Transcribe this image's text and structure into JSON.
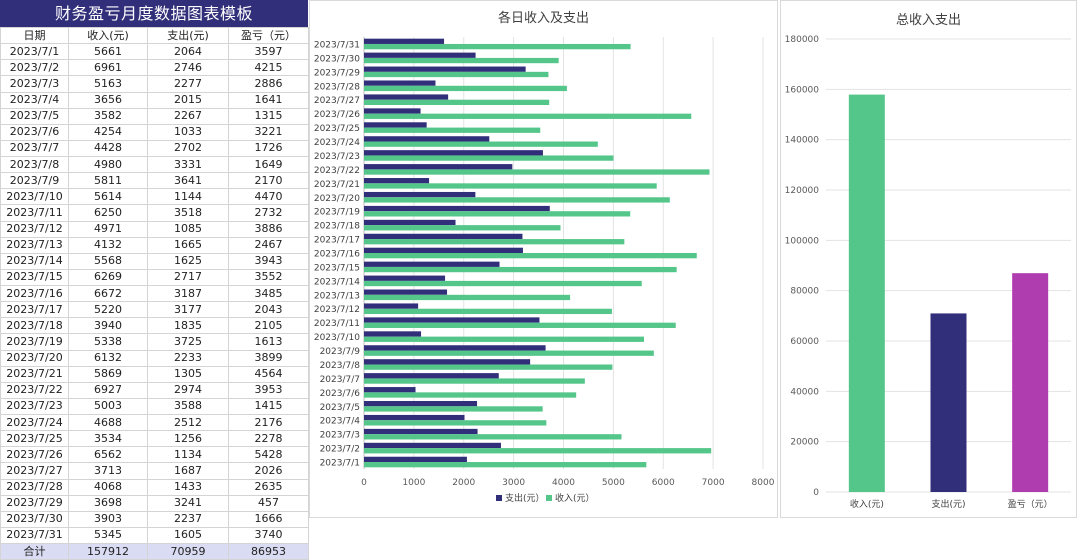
{
  "table": {
    "title": "财务盈亏月度数据图表模板",
    "headers": [
      "日期",
      "收入(元)",
      "支出(元)",
      "盈亏（元）"
    ],
    "rows": [
      [
        "2023/7/1",
        "5661",
        "2064",
        "3597"
      ],
      [
        "2023/7/2",
        "6961",
        "2746",
        "4215"
      ],
      [
        "2023/7/3",
        "5163",
        "2277",
        "2886"
      ],
      [
        "2023/7/4",
        "3656",
        "2015",
        "1641"
      ],
      [
        "2023/7/5",
        "3582",
        "2267",
        "1315"
      ],
      [
        "2023/7/6",
        "4254",
        "1033",
        "3221"
      ],
      [
        "2023/7/7",
        "4428",
        "2702",
        "1726"
      ],
      [
        "2023/7/8",
        "4980",
        "3331",
        "1649"
      ],
      [
        "2023/7/9",
        "5811",
        "3641",
        "2170"
      ],
      [
        "2023/7/10",
        "5614",
        "1144",
        "4470"
      ],
      [
        "2023/7/11",
        "6250",
        "3518",
        "2732"
      ],
      [
        "2023/7/12",
        "4971",
        "1085",
        "3886"
      ],
      [
        "2023/7/13",
        "4132",
        "1665",
        "2467"
      ],
      [
        "2023/7/14",
        "5568",
        "1625",
        "3943"
      ],
      [
        "2023/7/15",
        "6269",
        "2717",
        "3552"
      ],
      [
        "2023/7/16",
        "6672",
        "3187",
        "3485"
      ],
      [
        "2023/7/17",
        "5220",
        "3177",
        "2043"
      ],
      [
        "2023/7/18",
        "3940",
        "1835",
        "2105"
      ],
      [
        "2023/7/19",
        "5338",
        "3725",
        "1613"
      ],
      [
        "2023/7/20",
        "6132",
        "2233",
        "3899"
      ],
      [
        "2023/7/21",
        "5869",
        "1305",
        "4564"
      ],
      [
        "2023/7/22",
        "6927",
        "2974",
        "3953"
      ],
      [
        "2023/7/23",
        "5003",
        "3588",
        "1415"
      ],
      [
        "2023/7/24",
        "4688",
        "2512",
        "2176"
      ],
      [
        "2023/7/25",
        "3534",
        "1256",
        "2278"
      ],
      [
        "2023/7/26",
        "6562",
        "1134",
        "5428"
      ],
      [
        "2023/7/27",
        "3713",
        "1687",
        "2026"
      ],
      [
        "2023/7/28",
        "4068",
        "1433",
        "2635"
      ],
      [
        "2023/7/29",
        "3698",
        "3241",
        "457"
      ],
      [
        "2023/7/30",
        "3903",
        "2237",
        "1666"
      ],
      [
        "2023/7/31",
        "5345",
        "1605",
        "3740"
      ]
    ],
    "total": [
      "合计",
      "157912",
      "70959",
      "86953"
    ]
  },
  "colors": {
    "header_bg": "#312e7a",
    "total_bg": "#d9dcf2",
    "income": "#55c68a",
    "expense": "#312e7a",
    "profit": "#b03db0"
  },
  "chart_data": [
    {
      "type": "bar",
      "orientation": "horizontal",
      "title": "各日收入及支出",
      "categories": [
        "2023/7/1",
        "2023/7/2",
        "2023/7/3",
        "2023/7/4",
        "2023/7/5",
        "2023/7/6",
        "2023/7/7",
        "2023/7/8",
        "2023/7/9",
        "2023/7/10",
        "2023/7/11",
        "2023/7/12",
        "2023/7/13",
        "2023/7/14",
        "2023/7/15",
        "2023/7/16",
        "2023/7/17",
        "2023/7/18",
        "2023/7/19",
        "2023/7/20",
        "2023/7/21",
        "2023/7/22",
        "2023/7/23",
        "2023/7/24",
        "2023/7/25",
        "2023/7/26",
        "2023/7/27",
        "2023/7/28",
        "2023/7/29",
        "2023/7/30",
        "2023/7/31"
      ],
      "series": [
        {
          "name": "支出(元）",
          "values": [
            2064,
            2746,
            2277,
            2015,
            2267,
            1033,
            2702,
            3331,
            3641,
            1144,
            3518,
            1085,
            1665,
            1625,
            2717,
            3187,
            3177,
            1835,
            3725,
            2233,
            1305,
            2974,
            3588,
            2512,
            1256,
            1134,
            1687,
            1433,
            3241,
            2237,
            1605
          ]
        },
        {
          "name": "收入(元）",
          "values": [
            5661,
            6961,
            5163,
            3656,
            3582,
            4254,
            4428,
            4980,
            5811,
            5614,
            6250,
            4971,
            4132,
            5568,
            6269,
            6672,
            5220,
            3940,
            5338,
            6132,
            5869,
            6927,
            5003,
            4688,
            3534,
            6562,
            3713,
            4068,
            3698,
            3903,
            5345
          ]
        }
      ],
      "xlim": [
        0,
        8000
      ],
      "xticks": [
        "0",
        "1000",
        "2000",
        "3000",
        "4000",
        "5000",
        "6000",
        "7000",
        "8000"
      ],
      "grid": true,
      "legend": "bottom"
    },
    {
      "type": "bar",
      "title": "总收入支出",
      "categories": [
        "收入(元)",
        "支出(元)",
        "盈亏（元）"
      ],
      "values": [
        157912,
        70959,
        86953
      ],
      "ylim": [
        0,
        180000
      ],
      "yticks": [
        "0",
        "20000",
        "40000",
        "60000",
        "80000",
        "100000",
        "120000",
        "140000",
        "160000",
        "180000"
      ],
      "grid": true
    }
  ]
}
